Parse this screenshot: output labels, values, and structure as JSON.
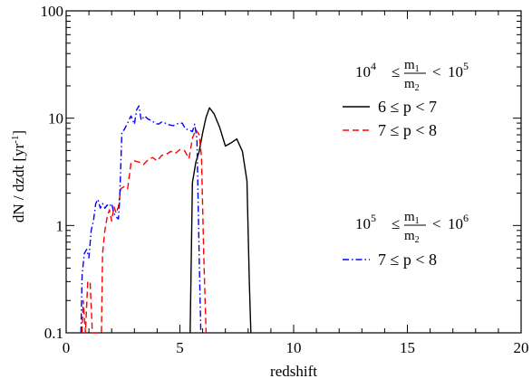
{
  "chart_data": {
    "type": "line",
    "xlabel": "redshift",
    "ylabel": "dN / dzdt   [yr",
    "ylabel_sup": "-1",
    "ylabel_close": "]",
    "xlim": [
      0,
      20
    ],
    "ylim": [
      0.1,
      100
    ],
    "yscale": "log",
    "grid": false,
    "xticks": [
      0,
      5,
      10,
      15,
      20
    ],
    "xtick_labels": [
      "0",
      "5",
      "10",
      "15",
      "20"
    ],
    "yticks": [
      0.1,
      1,
      10,
      100
    ],
    "ytick_labels": [
      "0.1",
      "1",
      "10",
      "100"
    ],
    "legend_groups": [
      {
        "ratio_label": {
          "base_left": "10",
          "exp_left": "4",
          "num": "m",
          "num_sub": "1",
          "den": "m",
          "den_sub": "2",
          "base_right": "10",
          "exp_right": "5"
        },
        "entries": [
          "6 ≤  p < 7",
          "7 ≤  p < 8"
        ]
      },
      {
        "ratio_label": {
          "base_left": "10",
          "exp_left": "5",
          "num": "m",
          "num_sub": "1",
          "den": "m",
          "den_sub": "2",
          "base_right": "10",
          "exp_right": "6"
        },
        "entries": [
          "7 ≤  p < 8"
        ]
      }
    ],
    "symbols": {
      "le": "≤",
      "lt": "<"
    },
    "series": [
      {
        "group": 0,
        "entry": 0,
        "color": "#000000",
        "dash": "solid",
        "x": [
          5.45,
          5.55,
          5.7,
          5.85,
          6.0,
          6.15,
          6.3,
          6.5,
          6.75,
          7.0,
          7.25,
          7.5,
          7.75,
          7.95,
          8.05,
          8.12
        ],
        "y": [
          0.1,
          2.5,
          3.9,
          4.9,
          7.3,
          10.2,
          12.5,
          11.0,
          8.2,
          5.5,
          5.9,
          6.4,
          4.9,
          2.6,
          0.3,
          0.1
        ]
      },
      {
        "group": 0,
        "entry": 1,
        "color": "#ff0000",
        "dash": "dashed",
        "x": [
          0.7,
          0.75,
          0.85,
          0.95,
          1.05,
          1.15,
          1.25,
          1.35,
          1.45,
          1.55,
          1.6,
          1.7,
          1.8,
          1.9,
          2.0,
          2.1,
          2.2,
          2.3,
          2.4,
          2.55,
          2.7,
          2.85,
          3.0,
          3.2,
          3.4,
          3.6,
          3.8,
          4.0,
          4.2,
          4.4,
          4.6,
          4.8,
          5.0,
          5.2,
          5.4,
          5.55,
          5.7,
          5.85,
          5.95,
          6.05,
          6.15,
          6.2
        ],
        "y": [
          0.1,
          0.2,
          0.1,
          0.3,
          0.3,
          0.1,
          0.1,
          0.1,
          0.1,
          0.1,
          0.55,
          0.9,
          1.2,
          1.4,
          1.1,
          1.5,
          1.3,
          1.5,
          2.2,
          2.3,
          2.2,
          3.8,
          4.0,
          3.9,
          3.7,
          4.1,
          4.3,
          4.0,
          4.5,
          4.6,
          4.9,
          4.7,
          5.1,
          5.0,
          4.2,
          6.5,
          7.8,
          7.0,
          4.4,
          0.5,
          0.1,
          0.1
        ]
      },
      {
        "group": 1,
        "entry": 0,
        "color": "#0000ff",
        "dash": "dashdot",
        "x": [
          0.65,
          0.7,
          0.8,
          0.9,
          1.0,
          1.1,
          1.2,
          1.3,
          1.4,
          1.5,
          1.6,
          1.7,
          1.8,
          1.9,
          2.0,
          2.1,
          2.2,
          2.3,
          2.35,
          2.45,
          2.55,
          2.7,
          2.85,
          3.0,
          3.1,
          3.2,
          3.3,
          3.45,
          3.6,
          3.75,
          3.9,
          4.05,
          4.2,
          4.35,
          4.5,
          4.7,
          4.9,
          5.1,
          5.25,
          5.4,
          5.55,
          5.65,
          5.75,
          5.85,
          5.92
        ],
        "y": [
          0.1,
          0.35,
          0.55,
          0.6,
          0.5,
          0.9,
          1.1,
          1.6,
          1.75,
          1.45,
          1.6,
          1.45,
          1.55,
          1.5,
          1.6,
          1.3,
          1.2,
          1.15,
          1.7,
          7.5,
          7.8,
          9.0,
          10.5,
          8.8,
          12.0,
          13.0,
          9.6,
          10.5,
          9.8,
          9.5,
          9.0,
          8.8,
          9.2,
          9.0,
          8.7,
          8.5,
          8.9,
          9.0,
          7.9,
          7.8,
          7.5,
          8.8,
          6.4,
          0.5,
          0.1
        ]
      }
    ]
  }
}
